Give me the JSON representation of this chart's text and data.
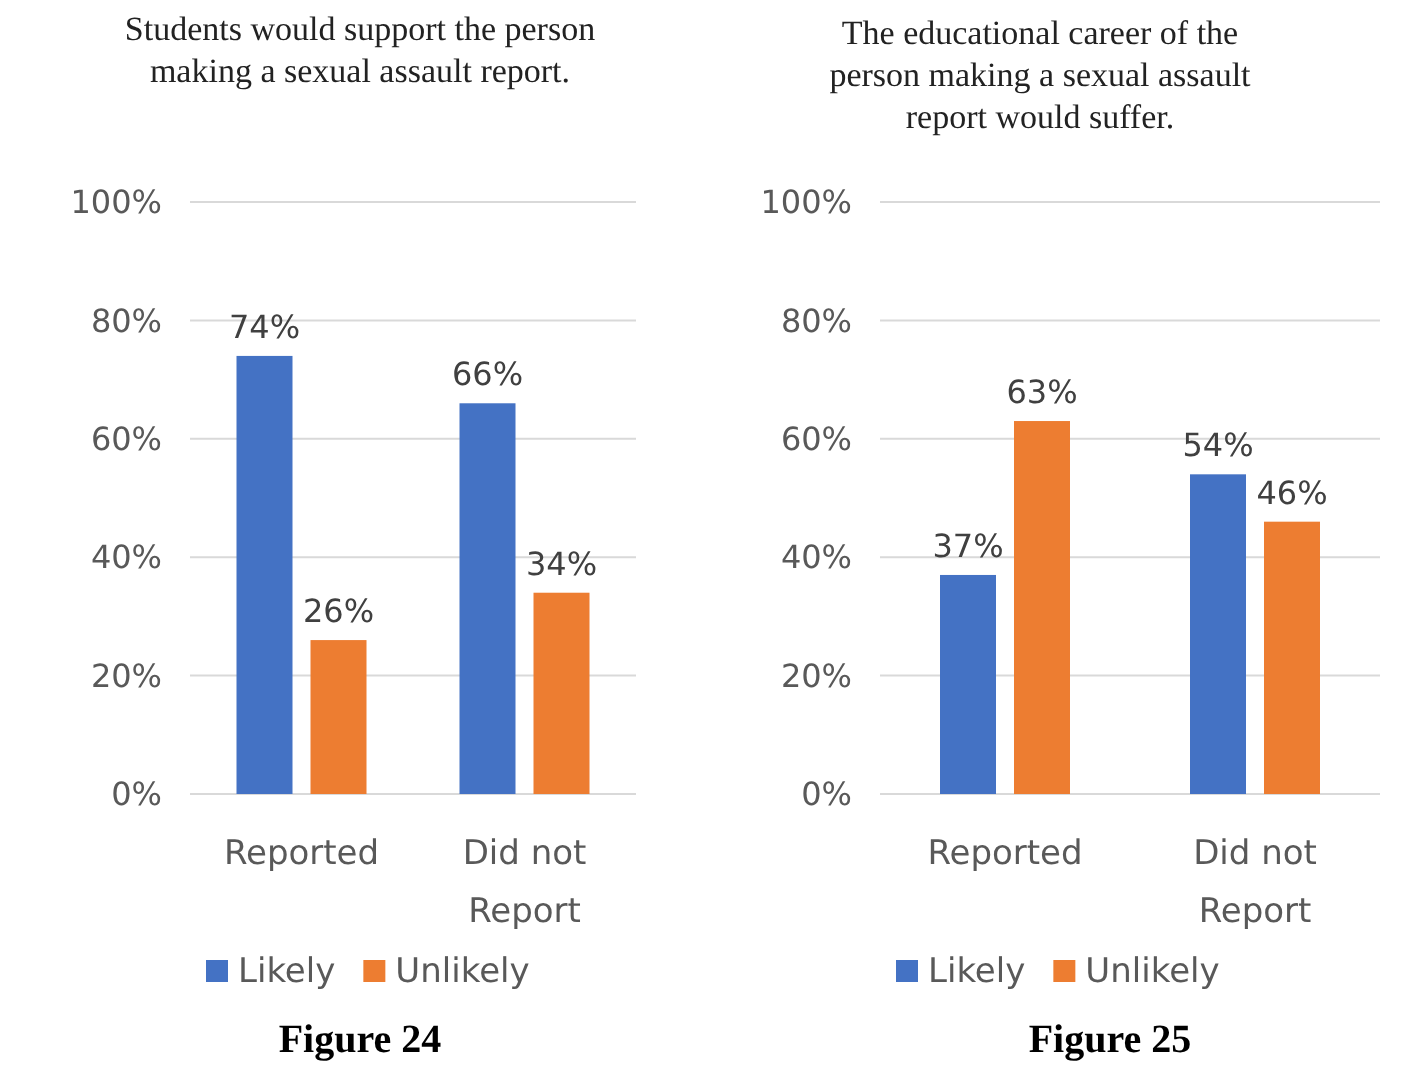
{
  "chart_data": [
    {
      "type": "bar",
      "title": "Students would support the person making a sexual assault report.",
      "categories": [
        "Reported",
        "Did not Report"
      ],
      "series": [
        {
          "name": "Likely",
          "color": "#4472c4",
          "values": [
            74,
            66
          ],
          "value_labels": [
            "74%",
            "66%"
          ]
        },
        {
          "name": "Unlikely",
          "color": "#ed7d31",
          "values": [
            26,
            34
          ],
          "value_labels": [
            "26%",
            "34%"
          ]
        }
      ],
      "ylim": [
        0,
        100
      ],
      "yticks": [
        {
          "value": 0,
          "label": "0%"
        },
        {
          "value": 20,
          "label": "20%"
        },
        {
          "value": 40,
          "label": "40%"
        },
        {
          "value": 60,
          "label": "60%"
        },
        {
          "value": 80,
          "label": "80%"
        },
        {
          "value": 100,
          "label": "100%"
        }
      ],
      "grid": "y",
      "legend": "bottom",
      "annotations": [
        "Figure 24"
      ]
    },
    {
      "type": "bar",
      "title": "The educational career of the person making a sexual assault report would suffer.",
      "categories": [
        "Reported",
        "Did not Report"
      ],
      "series": [
        {
          "name": "Likely",
          "color": "#4472c4",
          "values": [
            37,
            54
          ],
          "value_labels": [
            "37%",
            "54%"
          ]
        },
        {
          "name": "Unlikely",
          "color": "#ed7d31",
          "values": [
            63,
            46
          ],
          "value_labels": [
            "63%",
            "46%"
          ]
        }
      ],
      "ylim": [
        0,
        100
      ],
      "yticks": [
        {
          "value": 0,
          "label": "0%"
        },
        {
          "value": 20,
          "label": "20%"
        },
        {
          "value": 40,
          "label": "40%"
        },
        {
          "value": 60,
          "label": "60%"
        },
        {
          "value": 80,
          "label": "80%"
        },
        {
          "value": 100,
          "label": "100%"
        }
      ],
      "grid": "y",
      "legend": "bottom",
      "annotations": [
        "Figure 25"
      ]
    }
  ]
}
